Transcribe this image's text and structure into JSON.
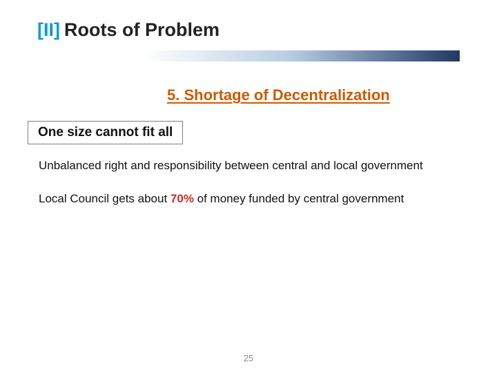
{
  "colors": {
    "sectionNum": "#0a9bd6",
    "titleText": "#222222",
    "subheadText": "#cc5a00",
    "boxBorder": "#7f7f7f",
    "bodyText": "#111111",
    "emphRed": "#d42a1f",
    "pageNum": "#8a8a8a",
    "gradientStart": "#ffffff",
    "gradientMid": "#b8cce4",
    "gradientEnd": "#1f3864"
  },
  "title": {
    "section": "[II]",
    "text": "Roots of Problem"
  },
  "subhead": "5. Shortage of Decentralization",
  "callout": "One size cannot fit all",
  "paragraphs": {
    "p1": "Unbalanced right and responsibility between central and local government",
    "p2_pre": "Local Council gets about ",
    "p2_emph": "70%",
    "p2_post": " of money funded by central government"
  },
  "pageNumber": "25"
}
